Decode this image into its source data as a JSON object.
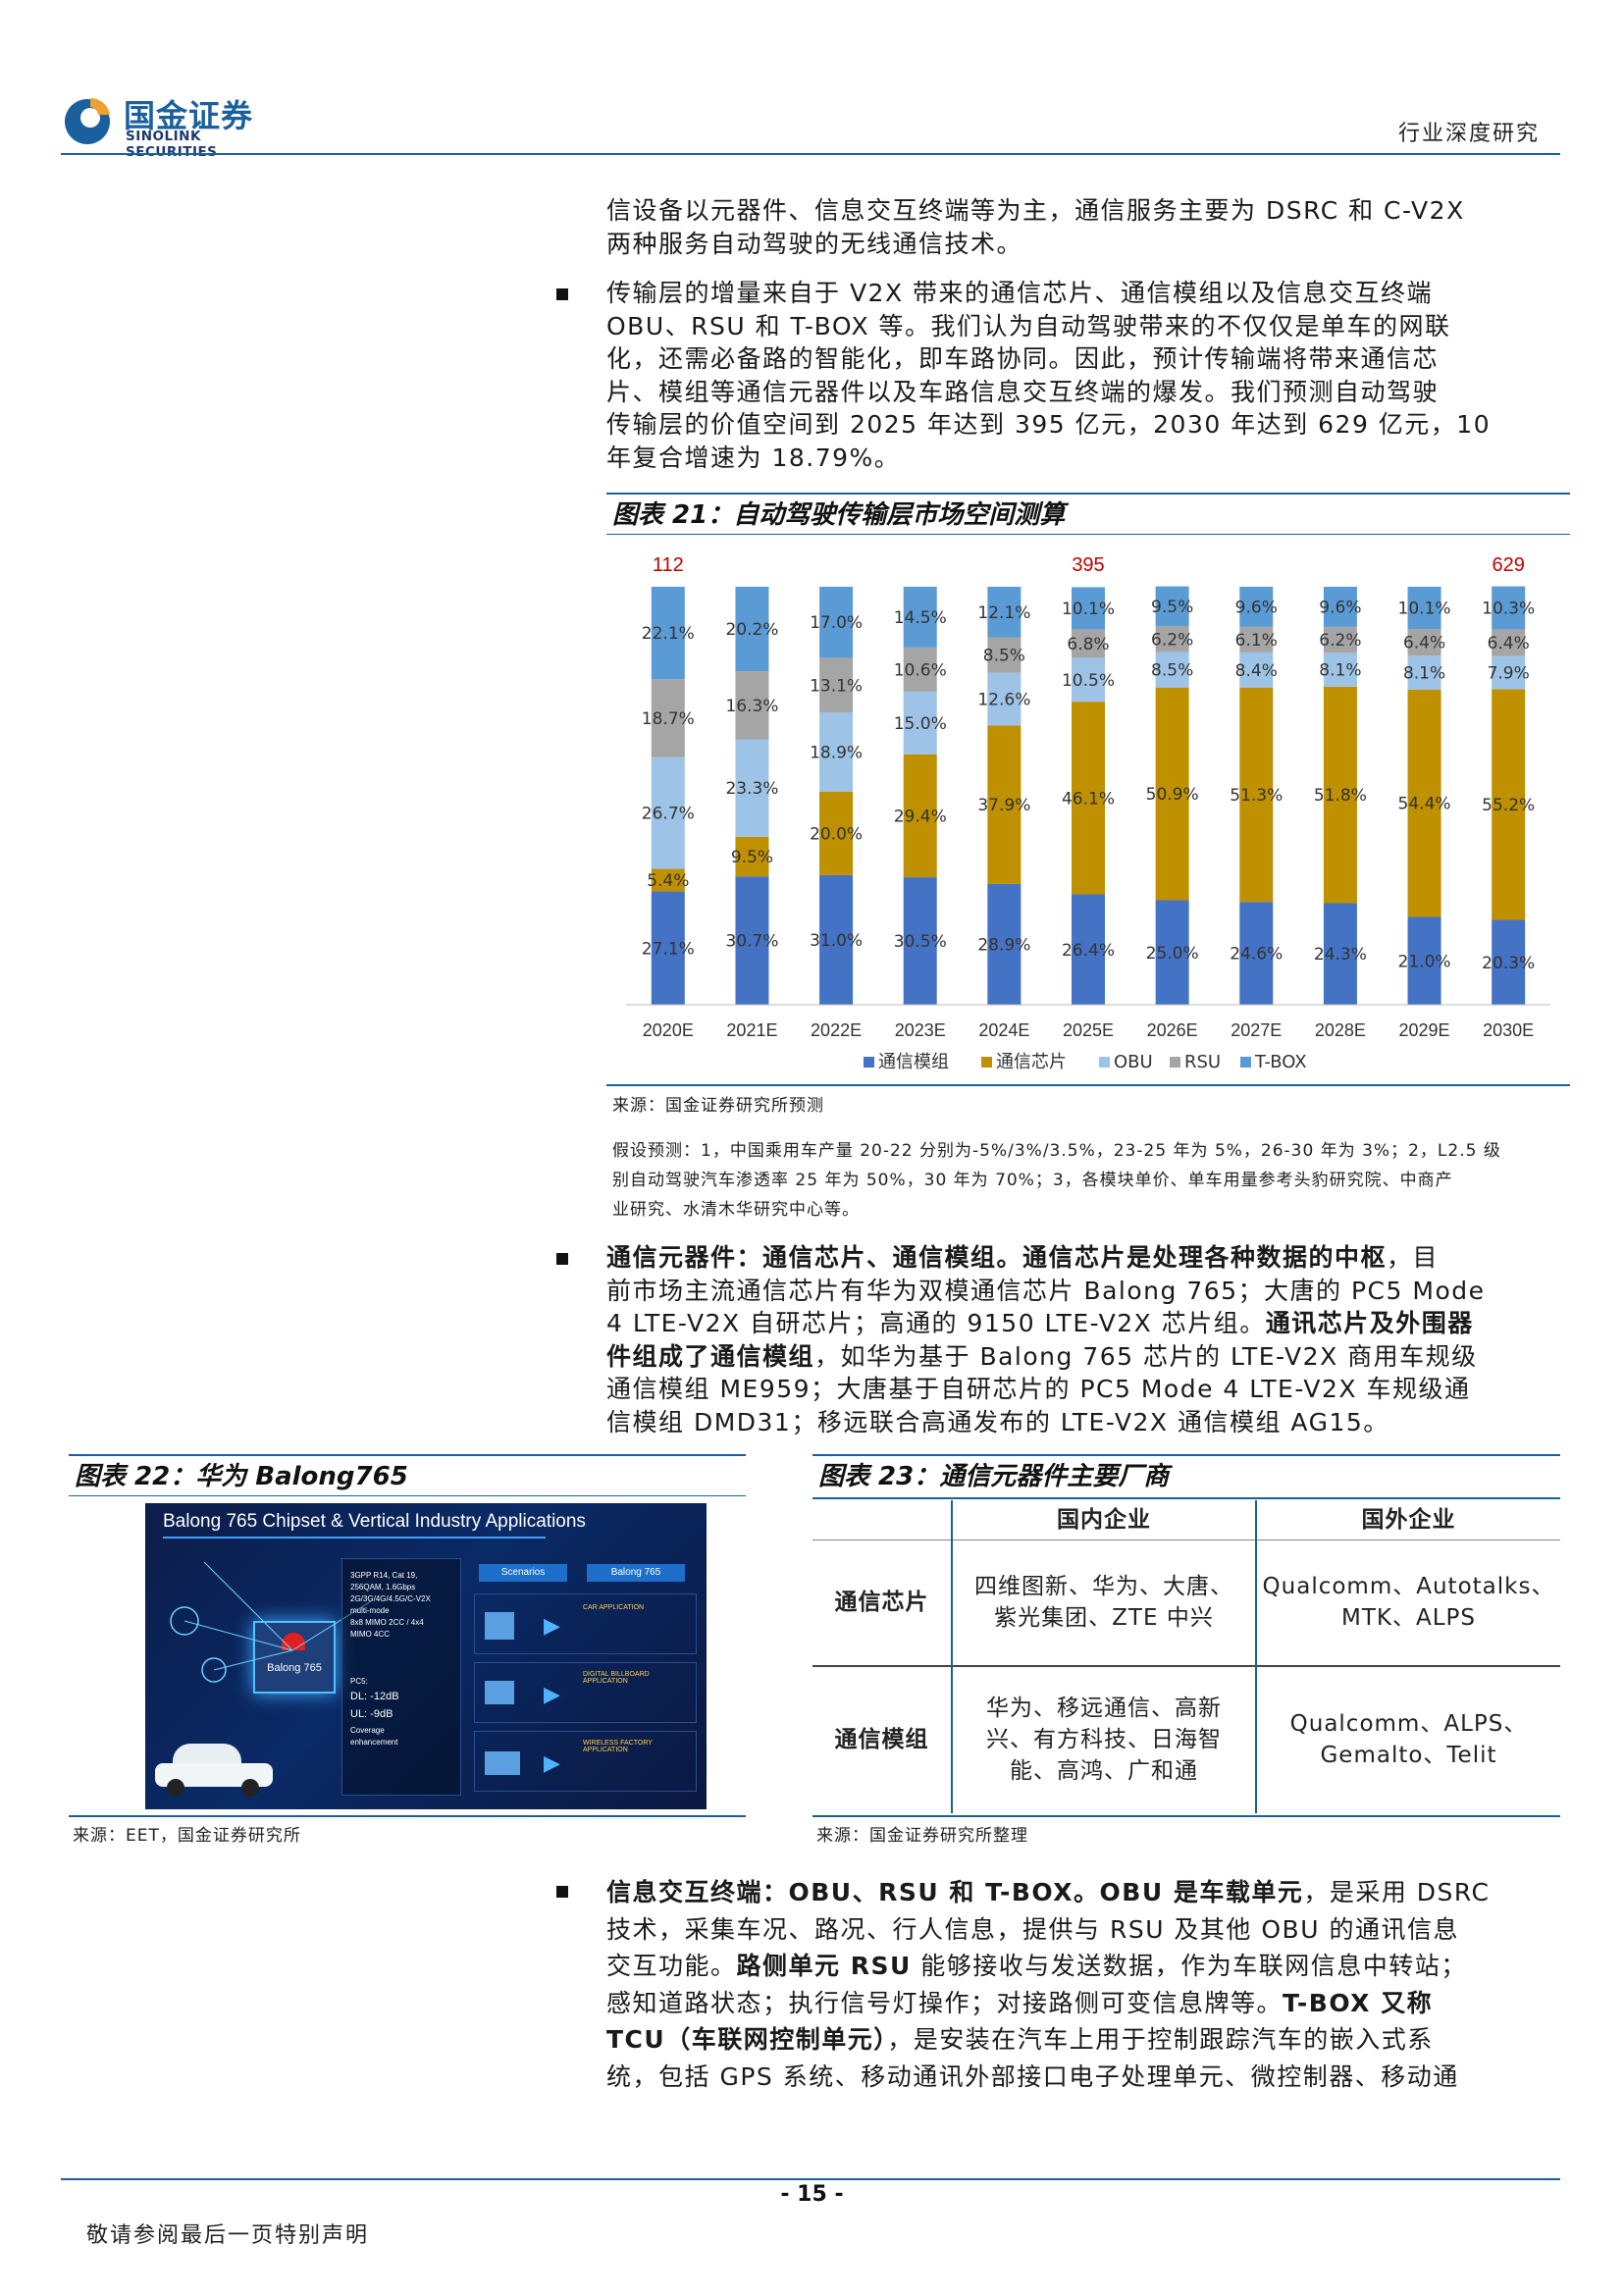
{
  "header": {
    "logo_cn": "国金证券",
    "logo_en": "SINOLINK SECURITIES",
    "right_title": "行业深度研究",
    "brand_color": "#1a5f9e"
  },
  "intro_lines": [
    "信设备以元器件、信息交互终端等为主，通信服务主要为 DSRC 和 C-V2X",
    "两种服务自动驾驶的无线通信技术。"
  ],
  "bullet1_lines": [
    "传输层的增量来自于 V2X 带来的通信芯片、通信模组以及信息交互终端",
    "OBU、RSU 和 T-BOX 等。我们认为自动驾驶带来的不仅仅是单车的网联",
    "化，还需必备路的智能化，即车路协同。因此，预计传输端将带来通信芯",
    "片、模组等通信元器件以及车路信息交互终端的爆发。我们预测自动驾驶",
    "传输层的价值空间到 2025 年达到 395 亿元，2030 年达到 629 亿元，10",
    "年复合增速为 18.79%。"
  ],
  "fig21": {
    "title": "图表 21：自动驾驶传输层市场空间测算",
    "source": "来源：国金证券研究所预测",
    "note_lines": [
      "假设预测：1，中国乘用车产量 20-22 分别为-5%/3%/3.5%，23-25 年为 5%，26-30 年为 3%；2，L2.5 级",
      "别自动驾驶汽车渗透率 25 年为 50%，30 年为 70%；3，各模块单价、单车用量参考头豹研究院、中商产",
      "业研究、水清木华研究中心等。"
    ]
  },
  "chart_data": {
    "type": "bar",
    "stacked": true,
    "categories": [
      "2020E",
      "2021E",
      "2022E",
      "2023E",
      "2024E",
      "2025E",
      "2026E",
      "2027E",
      "2028E",
      "2029E",
      "2030E"
    ],
    "series": [
      {
        "name": "通信模组",
        "color": "#4472c4",
        "values": [
          27.1,
          30.7,
          31.0,
          30.5,
          28.9,
          26.4,
          25.0,
          24.6,
          24.3,
          21.0,
          20.3
        ]
      },
      {
        "name": "通信芯片",
        "color": "#bf9000",
        "values": [
          5.4,
          9.5,
          20.0,
          29.4,
          37.9,
          46.1,
          50.9,
          51.3,
          51.8,
          54.4,
          55.2
        ]
      },
      {
        "name": "OBU",
        "color": "#9dc3e6",
        "values": [
          26.7,
          23.3,
          18.9,
          15.0,
          12.6,
          10.5,
          8.5,
          8.4,
          8.1,
          8.1,
          7.9
        ]
      },
      {
        "name": "RSU",
        "color": "#a5a5a5",
        "values": [
          18.7,
          16.3,
          13.1,
          10.6,
          8.5,
          6.8,
          6.2,
          6.1,
          6.2,
          6.4,
          6.4
        ]
      },
      {
        "name": "T-BOX",
        "color": "#5b9bd5",
        "values": [
          22.1,
          20.2,
          17.0,
          14.5,
          12.1,
          10.1,
          9.5,
          9.6,
          9.6,
          10.1,
          10.3
        ]
      }
    ],
    "total_labels": [
      {
        "category": "2020E",
        "value": "112"
      },
      {
        "category": "2025E",
        "value": "395"
      },
      {
        "category": "2030E",
        "value": "629"
      }
    ],
    "ylim": [
      0,
      100
    ],
    "legend": "bottom",
    "grid": false
  },
  "bullet2": {
    "lines": [
      [
        {
          "t": "通信元器件：通信芯片、通信模组。通信芯片是处理各种数据的中枢",
          "b": true
        },
        {
          "t": "，目",
          "b": false
        }
      ],
      [
        {
          "t": "前市场主流通信芯片有华为双模通信芯片 Balong 765；大唐的 PC5 Mode",
          "b": false
        }
      ],
      [
        {
          "t": "4 LTE-V2X 自研芯片；高通的 9150 LTE-V2X 芯片组。",
          "b": false
        },
        {
          "t": "通讯芯片及外围器",
          "b": true
        }
      ],
      [
        {
          "t": "件组成了通信模组",
          "b": true
        },
        {
          "t": "，如华为基于 Balong 765 芯片的 LTE-V2X 商用车规级",
          "b": false
        }
      ],
      [
        {
          "t": "通信模组 ME959；大唐基于自研芯片的 PC5 Mode 4 LTE-V2X 车规级通",
          "b": false
        }
      ],
      [
        {
          "t": "信模组 DMD31；移远联合高通发布的 LTE-V2X 通信模组 AG15。",
          "b": false
        }
      ]
    ]
  },
  "fig22": {
    "title": "图表 22：华为 Balong765",
    "source": "来源：EET，国金证券研究所",
    "img": {
      "heading": "Balong 765 Chipset & Vertical Industry Applications",
      "chip_label": "Balong 765",
      "specs": [
        "3GPP R14, Cat 19,",
        "256QAM, 1.6Gbps",
        "2G/3G/4G/4.5G/C-V2X",
        "multi-mode",
        "8x8 MIMO 2CC / 4x4",
        "MIMO 4CC"
      ],
      "perf": [
        "PC5:",
        "DL: -12dB",
        "UL: -9dB",
        "Coverage",
        "enhancement"
      ],
      "tab1": "Scenarios",
      "tab2": "Balong 765",
      "apps": [
        "CAR APPLICATION",
        "DIGITAL BILLBOARD APPLICATION",
        "WIRELESS FACTORY APPLICATION"
      ]
    }
  },
  "fig23": {
    "title": "图表 23：通信元器件主要厂商",
    "source": "来源：国金证券研究所整理",
    "headers": [
      "",
      "国内企业",
      "国外企业"
    ],
    "rows": [
      {
        "label": "通信芯片",
        "domestic": [
          "四维图新、华为、大唐、",
          "紫光集团、ZTE 中兴"
        ],
        "foreign": [
          "Qualcomm、Autotalks、",
          "MTK、ALPS"
        ]
      },
      {
        "label": "通信模组",
        "domestic": [
          "华为、移远通信、高新",
          "兴、有方科技、日海智",
          "能、高鸿、广和通"
        ],
        "foreign": [
          "Qualcomm、ALPS、",
          "Gemalto、Telit"
        ]
      }
    ]
  },
  "bullet3": {
    "lines": [
      [
        {
          "t": "信息交互终端：OBU、RSU 和 T-BOX。OBU 是车载单元",
          "b": true
        },
        {
          "t": "，是采用 DSRC",
          "b": false
        }
      ],
      [
        {
          "t": "技术，采集车况、路况、行人信息，提供与 RSU 及其他 OBU 的通讯信息",
          "b": false
        }
      ],
      [
        {
          "t": "交互功能。",
          "b": false
        },
        {
          "t": "路侧单元 RSU",
          "b": true
        },
        {
          "t": " 能够接收与发送数据，作为车联网信息中转站；",
          "b": false
        }
      ],
      [
        {
          "t": "感知道路状态；执行信号灯操作；对接路侧可变信息牌等。",
          "b": false
        },
        {
          "t": "T-BOX 又称",
          "b": true
        }
      ],
      [
        {
          "t": "TCU（车联网控制单元）",
          "b": true
        },
        {
          "t": "，是安装在汽车上用于控制跟踪汽车的嵌入式系",
          "b": false
        }
      ],
      [
        {
          "t": "统，包括 GPS 系统、移动通讯外部接口电子处理单元、微控制器、移动通",
          "b": false
        }
      ]
    ]
  },
  "footer": {
    "page_number": "- 15 -",
    "disclaimer": "敬请参阅最后一页特别声明"
  }
}
